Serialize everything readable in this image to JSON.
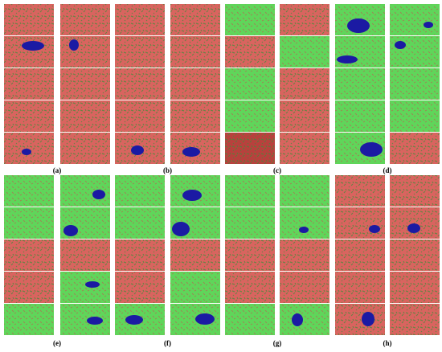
{
  "labels": [
    "(a)",
    "(b)",
    "(c)",
    "(d)",
    "(e)",
    "(f)",
    "(g)",
    "(h)"
  ]
}
